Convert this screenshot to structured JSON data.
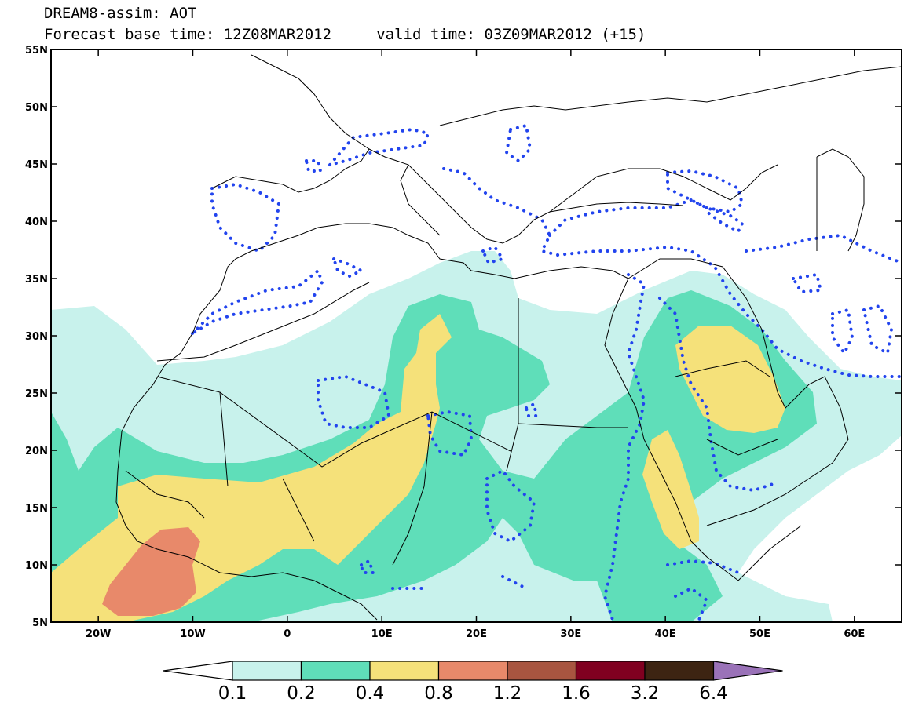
{
  "header": {
    "title_line1": "DREAM8-assim: AOT",
    "title_line2": "Forecast base time: 12Z08MAR2012     valid time: 03Z09MAR2012 (+15)"
  },
  "map": {
    "projection": "lat-lon",
    "lon_range": [
      -25,
      65
    ],
    "lat_range": [
      5,
      55
    ],
    "lat_ticks": [
      {
        "value": 55,
        "label": "55N"
      },
      {
        "value": 50,
        "label": "50N"
      },
      {
        "value": 45,
        "label": "45N"
      },
      {
        "value": 40,
        "label": "40N"
      },
      {
        "value": 35,
        "label": "35N"
      },
      {
        "value": 30,
        "label": "30N"
      },
      {
        "value": 25,
        "label": "25N"
      },
      {
        "value": 20,
        "label": "20N"
      },
      {
        "value": 15,
        "label": "15N"
      },
      {
        "value": 10,
        "label": "10N"
      },
      {
        "value": 5,
        "label": "5N"
      }
    ],
    "lon_ticks": [
      {
        "value": -20,
        "label": "20W"
      },
      {
        "value": -10,
        "label": "10W"
      },
      {
        "value": 0,
        "label": "0"
      },
      {
        "value": 10,
        "label": "10E"
      },
      {
        "value": 20,
        "label": "20E"
      },
      {
        "value": 30,
        "label": "30E"
      },
      {
        "value": 40,
        "label": "40E"
      },
      {
        "value": 50,
        "label": "50E"
      },
      {
        "value": 60,
        "label": "60E"
      }
    ],
    "field_colors": {
      "0.1-0.2": "#c8f2ec",
      "0.2-0.4": "#5fdeb9",
      "0.4-0.8": "#f5e17a",
      "0.8-1.2": "#e8896a"
    },
    "contour_color": "#2244ee",
    "coastline_color": "#000000"
  },
  "colorbar": {
    "bins": [
      {
        "color": "#ffffff"
      },
      {
        "color": "#c8f2ec"
      },
      {
        "color": "#5fdeb9"
      },
      {
        "color": "#f5e17a"
      },
      {
        "color": "#e8896a"
      },
      {
        "color": "#a85540"
      },
      {
        "color": "#800020"
      },
      {
        "color": "#3d2412"
      },
      {
        "color": "#9a72b8"
      }
    ],
    "labels": [
      "0.1",
      "0.2",
      "0.4",
      "0.8",
      "1.2",
      "1.6",
      "3.2",
      "6.4"
    ]
  }
}
